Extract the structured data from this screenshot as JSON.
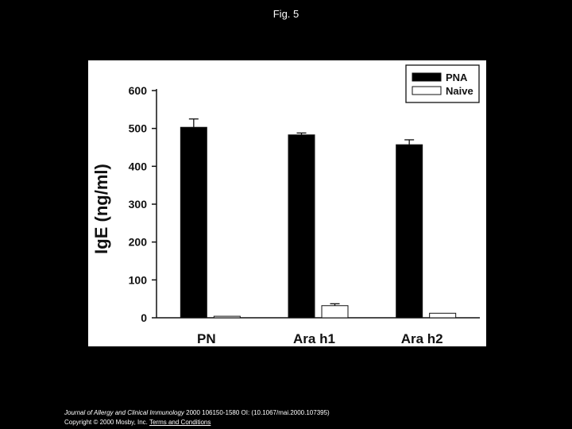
{
  "figure": {
    "title": "Fig. 5"
  },
  "chart_data": {
    "type": "bar",
    "title": "",
    "xlabel": "",
    "ylabel": "IgE (ng/ml)",
    "ylim": [
      0,
      600
    ],
    "yticks": [
      0,
      100,
      200,
      300,
      400,
      500,
      600
    ],
    "categories": [
      "PN",
      "Ara h1",
      "Ara h2"
    ],
    "series": [
      {
        "name": "PNA",
        "values": [
          503,
          483,
          457
        ],
        "errors": [
          22,
          5,
          13
        ],
        "color": "#000000"
      },
      {
        "name": "Naive",
        "values": [
          4,
          32,
          12
        ],
        "errors": [
          0,
          5,
          0
        ],
        "color": "#ffffff"
      }
    ],
    "legend_position": "top-right",
    "grid": false
  },
  "footer": {
    "journal": "Journal of Allergy and Clinical Immunology",
    "citation": " 2000 106150-1580 OI: (10.1067/mai.2000.107395)",
    "copyright": "Copyright © 2000 Mosby, Inc.",
    "terms_link": "Terms and Conditions"
  }
}
